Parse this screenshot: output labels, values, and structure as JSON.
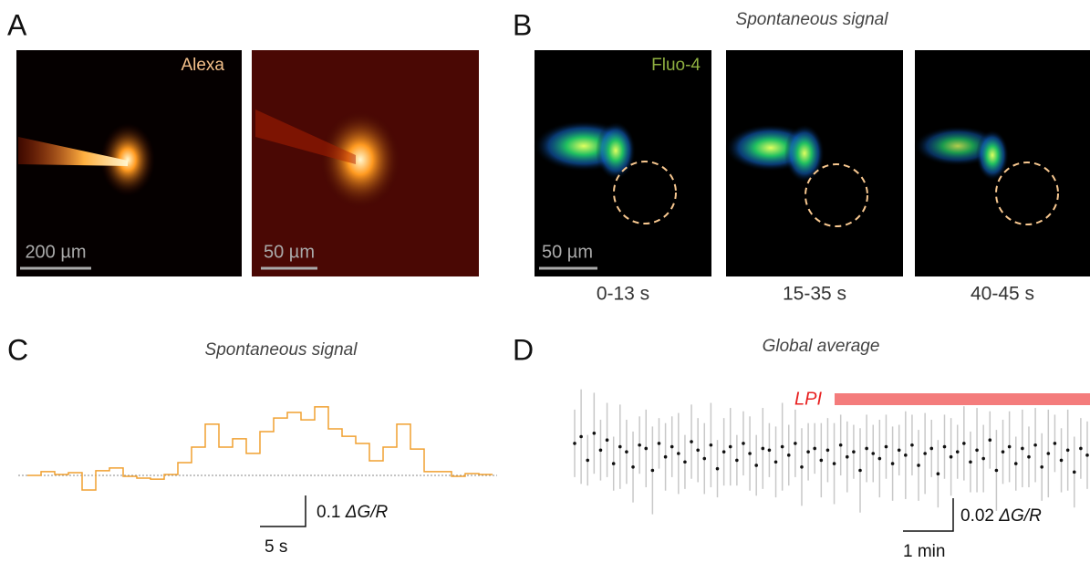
{
  "panel_a": {
    "label": "A",
    "dye": "Alexa",
    "scale_left": "200 µm",
    "scale_right": "50 µm"
  },
  "panel_b": {
    "label": "B",
    "title": "Spontaneous signal",
    "dye": "Fluo-4",
    "scale": "50 µm",
    "captions": [
      "0-13 s",
      "15-35 s",
      "40-45 s"
    ]
  },
  "panel_c": {
    "label": "C",
    "title": "Spontaneous signal",
    "scale_value": "0.1",
    "scale_unit": "ΔG/R",
    "scale_time": "5 s",
    "trace": [
      0,
      0.012,
      0.003,
      0.009,
      -0.047,
      0.015,
      0.024,
      -0.003,
      -0.009,
      -0.012,
      0.003,
      0.041,
      0.091,
      0.165,
      0.091,
      0.118,
      0.071,
      0.141,
      0.185,
      0.203,
      0.179,
      0.221,
      0.15,
      0.126,
      0.103,
      0.047,
      0.091,
      0.165,
      0.085,
      0.012,
      0.012,
      -0.003,
      0.006,
      0.003
    ]
  },
  "panel_d": {
    "label": "D",
    "title": "Global average",
    "drug": "LPI",
    "scale_value": "0.02",
    "scale_unit": "ΔG/R",
    "scale_time": "1 min",
    "means": [
      0.006,
      0.01,
      -0.004,
      0.012,
      0.002,
      0.008,
      -0.006,
      0.004,
      0.001,
      -0.008,
      0.005,
      0.003,
      -0.01,
      0.006,
      -0.002,
      0.004,
      0.0,
      -0.005,
      0.007,
      0.002,
      -0.003,
      0.005,
      -0.009,
      0.001,
      0.004,
      -0.004,
      0.006,
      0.0,
      -0.007,
      0.003,
      0.002,
      -0.005,
      0.004,
      -0.001,
      0.006,
      -0.008,
      0.001,
      0.003,
      -0.004,
      0.002,
      -0.006,
      0.005,
      -0.002,
      0.001,
      -0.01,
      0.003,
      0.0,
      -0.003,
      0.004,
      -0.006,
      0.002,
      -0.001,
      0.005,
      -0.007,
      0.0,
      0.003,
      -0.012,
      0.004,
      -0.002,
      0.001,
      0.006,
      -0.005,
      0.002,
      -0.003,
      0.008,
      -0.01,
      0.001,
      0.004,
      -0.006,
      0.003,
      -0.002,
      0.005,
      -0.008,
      0.0,
      0.006,
      -0.004,
      0.002,
      -0.011,
      0.003,
      -0.001
    ],
    "errors": [
      0.02,
      0.028,
      0.015,
      0.024,
      0.018,
      0.022,
      0.016,
      0.025,
      0.019,
      0.021,
      0.017,
      0.023,
      0.026,
      0.015,
      0.02,
      0.018,
      0.024,
      0.016,
      0.022,
      0.019,
      0.021,
      0.025,
      0.017,
      0.02,
      0.023,
      0.015,
      0.019,
      0.022,
      0.018,
      0.024,
      0.016,
      0.021,
      0.026,
      0.018,
      0.02,
      0.023,
      0.017,
      0.015,
      0.022,
      0.019,
      0.024,
      0.018,
      0.021,
      0.016,
      0.025,
      0.02,
      0.017,
      0.023,
      0.019,
      0.022,
      0.015,
      0.026,
      0.018,
      0.021,
      0.024,
      0.017,
      0.02,
      0.019,
      0.023,
      0.016,
      0.022,
      0.018,
      0.025,
      0.02,
      0.017,
      0.024,
      0.019,
      0.021,
      0.016,
      0.023,
      0.018,
      0.022,
      0.02,
      0.026,
      0.017,
      0.019,
      0.024,
      0.021,
      0.018,
      0.02
    ]
  }
}
